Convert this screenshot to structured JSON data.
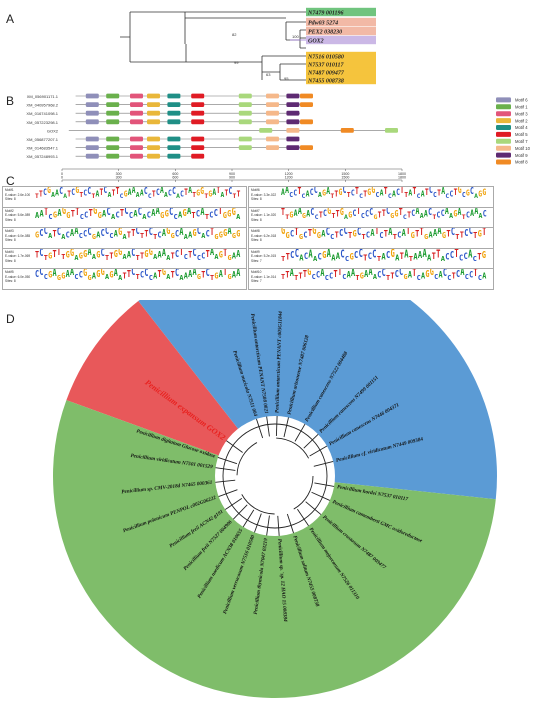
{
  "panels": {
    "a": "A",
    "b": "B",
    "c": "C",
    "d": "D"
  },
  "panel_a": {
    "taxa": [
      {
        "label": "N7479 001196",
        "color": "#70c47e"
      },
      {
        "label": "Pdw03 5274",
        "color": "#f2b9a6"
      },
      {
        "label": "PEX2 038230",
        "color": "#f2b9a6"
      },
      {
        "label": "GOX2",
        "color": "#cbb8e6"
      },
      {
        "label": "N7516 010580",
        "color": "#f5c43d"
      },
      {
        "label": "N7537 010117",
        "color": "#f5c43d"
      },
      {
        "label": "N7487 009477",
        "color": "#f5c43d"
      },
      {
        "label": "N7455 008738",
        "color": "#f5c43d"
      }
    ],
    "support": [
      "82",
      "100",
      "99",
      "63",
      "95"
    ]
  },
  "panel_b": {
    "sequences": [
      "XM_056901171.1",
      "XM_040957968.2",
      "XM_016741098.1",
      "XM_057223298.1",
      "GOX2",
      "XM_056877207.1",
      "XM_014683547.1",
      "XM_057248993.1"
    ],
    "axis_ticks": [
      "0",
      "300",
      "600",
      "900",
      "1200",
      "1500",
      "1800"
    ],
    "legend": [
      {
        "label": "Motif 6",
        "color": "#8f8fb9"
      },
      {
        "label": "Motif 1",
        "color": "#6ab04c"
      },
      {
        "label": "Motif 3",
        "color": "#e2557a"
      },
      {
        "label": "Motif 2",
        "color": "#e9b73a"
      },
      {
        "label": "Motif 4",
        "color": "#1f8f86"
      },
      {
        "label": "Motif 5",
        "color": "#e01b24"
      },
      {
        "label": "Motif 7",
        "color": "#a9d87c"
      },
      {
        "label": "Motif 10",
        "color": "#f5b88a"
      },
      {
        "label": "Motif 9",
        "color": "#5e2a72"
      },
      {
        "label": "Motif 8",
        "color": "#f08a24"
      }
    ]
  },
  "panel_c": {
    "motifs": [
      {
        "name": "Motif1",
        "evalue": "E-value: 2.6e-100",
        "sites": "Sites: 8",
        "seq": "TTCGAACATCGTCCTATCATTCGAAAACCTCAACCACTATGGTGATATCTT"
      },
      {
        "name": "Motif6",
        "evalue": "E-value: 3.3e-022",
        "sites": "Sites: 8",
        "seq": "AACCTCACCAGATTGCTCTCTGGCATCACTTATCATCCTACCTGCGCAGG"
      },
      {
        "name": "Motif2",
        "evalue": "E-value: 5.6e-089",
        "sites": "Sites: 8",
        "seq": "AATCGAGGTTCCTGGACACTCCACACAAGGCCAGATCATCCTGGGA"
      },
      {
        "name": "Motif7",
        "evalue": "E-value: 1.1e-020",
        "sites": "Sites: 8",
        "seq": "TTGAAGACCTCGTTGAGCTCCCGTTCGGTCTCAAACTCCAAGATCAAAC"
      },
      {
        "name": "Motif3",
        "evalue": "E-value: 6.0e-085",
        "sites": "Sites: 8",
        "seq": "GCCATCACAACCCGACCCAGATTCTTCTCAGGCAAAGCACTGGGAGG"
      },
      {
        "name": "Motif8",
        "evalue": "E-value: 6.2e-018",
        "sites": "Sites: 8",
        "seq": "GGCTGCTGGACCTCCTGCTCATCTATCATGTTGAAAGTCTTCCTGT"
      },
      {
        "name": "Motif4",
        "evalue": "E-value: 1.7e-069",
        "sites": "Sites: 8",
        "seq": "TCTGTTTGGAGGAAGCTTGGAACTTGGAAAATCTCTCCCTAAGTGAA"
      },
      {
        "name": "Motif9",
        "evalue": "E-value: 5.2e-015",
        "sites": "Sites: 7",
        "seq": "TTCCACAACGAAACCGCCTCCTACGATATAAAATTACCTCCACTG"
      },
      {
        "name": "Motif5",
        "evalue": "E-value: 6.0e-050",
        "sites": "Sites: 8",
        "seq": "CCCGAGGAACCGGAGGAGAATTCTCCCATGATCAAAAGTCTGATGAA"
      },
      {
        "name": "Motif10",
        "evalue": "E-value: 1.1e-014",
        "sites": "Sites: 7",
        "seq": "TTATTTGCCACCTTCAATGAAACCTTCCGATCAGGCACCTCACCTCA"
      }
    ],
    "axis_ticks": [
      "0",
      "300",
      "600",
      "900",
      "1200",
      "1500",
      "1800"
    ]
  },
  "panel_d": {
    "highlight": "Penicillium expansum GOX2",
    "leaves": [
      "Penicillium digitatum Glucose oxidase",
      "Penicillium nucicola N7511 004",
      "Penicillium antarcticum PENANT N7508 0021",
      "Penicillium antarcticum PENANT c005G11844",
      "Penicillium arizonense N7487 006128",
      "Penicillium canescens N7522 004488",
      "Penicillium canescens N7499 001151",
      "Penicillium canescens N7446 004371",
      "Penicillium cf. viridicatum N7449 009384",
      "Penicillium hordei N7537 010117",
      "Penicillium camemberti GMC oxidoreductase",
      "Penicillium crustosum N7487 009477",
      "Penicillium mejorcanum N7526 011310",
      "Penicillium solitum N7455 008738",
      "Penicillium sp. 'sp. 12 HAO 15 008384",
      "Penicillium thymicola N7047 03219",
      "Penicillium verrucosum N7516 010580",
      "Penicillium nordicum ACN38 010655",
      "Penicillium freii N7527 004906",
      "Penicillium freii ACN42 g191",
      "Penicillium polonicum PENPOL c002G06222",
      "Penicillium sp. CMV-2018d N7465 000361",
      "Penicillium viridicatum N7501 001529"
    ],
    "sectors": [
      {
        "label": "pink",
        "color": "#e8585a"
      },
      {
        "label": "blue",
        "color": "#5b9bd5"
      },
      {
        "label": "green",
        "color": "#7fbd6a"
      }
    ]
  }
}
